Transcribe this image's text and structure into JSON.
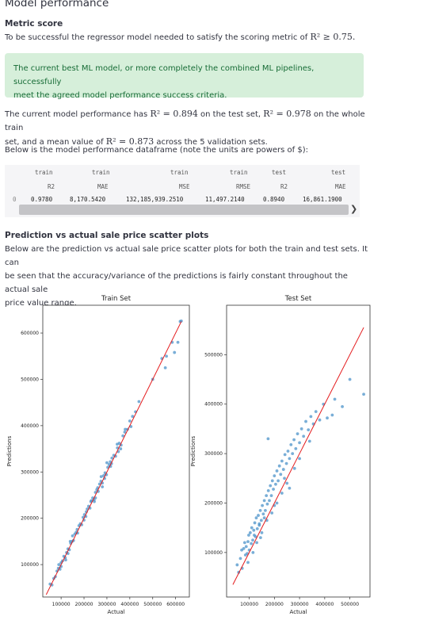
{
  "page": {
    "title": "Model performance",
    "metric_heading": "Metric score",
    "metric_text_pre": "To be successful the regressor model needed to satisfy the scoring metric of",
    "metric_math": "R² ≥ 0.75.",
    "success_line1": "The current best ML model, or more completely the combined ML pipelines, successfully",
    "success_line2": "meet the agreed model performance success criteria.",
    "perf_line1_a": "The current model performance has",
    "perf_line1_m1": "R² = 0.894",
    "perf_line1_b": "on the test set,",
    "perf_line1_m2": "R² = 0.978",
    "perf_line1_c": "on the whole train",
    "perf_line2_a": "set, and a mean value of",
    "perf_line2_m": "R² = 0.873",
    "perf_line2_b": "across the 5 validation sets.",
    "df_intro": "Below is the model performance dataframe (note the units are powers of $):",
    "scatter_heading": "Prediction vs actual sale price scatter plots",
    "scatter_line1": "Below are the prediction vs actual sale price scatter plots for both the train and test sets. It can",
    "scatter_line2": "be seen that the accuracy/variance of the predictions is fairly constant throughout the actual sale",
    "scatter_line3": "price value range."
  },
  "dataframe": {
    "columns_top": [
      "train",
      "train",
      "train",
      "train",
      "test",
      "test"
    ],
    "columns_bottom": [
      "R2",
      "MAE",
      "MSE",
      "RMSE",
      "R2",
      "MAE"
    ],
    "index": "0",
    "values": [
      "0.9780",
      "8,170.5420",
      "132,185,939.2510",
      "11,497.2140",
      "0.8940",
      "16,861.1900"
    ]
  },
  "colors": {
    "points": "#4c93c9",
    "fit_line": "#e41a1c",
    "success_bg": "#d6efda",
    "success_text": "#176c36"
  },
  "chart_data": [
    {
      "type": "scatter",
      "title": "Train Set",
      "xlabel": "Actual",
      "ylabel": "Predictions",
      "xticks": [
        100000,
        200000,
        300000,
        400000,
        500000,
        600000
      ],
      "xticklabels": [
        "100000",
        "200000",
        "300000",
        "400000",
        "500000",
        "600000"
      ],
      "yticks": [
        100000,
        200000,
        300000,
        400000,
        500000,
        600000
      ],
      "yticklabels": [
        "100000",
        "200000",
        "300000",
        "400000",
        "500000",
        "600000"
      ],
      "xlim": [
        20000,
        660000
      ],
      "ylim": [
        30000,
        660000
      ],
      "line": {
        "x": [
          35000,
          625000
        ],
        "y": [
          35000,
          625000
        ]
      },
      "points": [
        [
          52000,
          58000
        ],
        [
          60000,
          56000
        ],
        [
          68000,
          70000
        ],
        [
          75000,
          74000
        ],
        [
          82000,
          86000
        ],
        [
          88000,
          92000
        ],
        [
          95000,
          90000
        ],
        [
          100000,
          104000
        ],
        [
          106000,
          108000
        ],
        [
          112000,
          118000
        ],
        [
          118000,
          115000
        ],
        [
          124000,
          126000
        ],
        [
          130000,
          134000
        ],
        [
          136000,
          132000
        ],
        [
          142000,
          146000
        ],
        [
          148000,
          150000
        ],
        [
          154000,
          152000
        ],
        [
          160000,
          166000
        ],
        [
          166000,
          170000
        ],
        [
          172000,
          168000
        ],
        [
          178000,
          184000
        ],
        [
          184000,
          188000
        ],
        [
          190000,
          186000
        ],
        [
          196000,
          202000
        ],
        [
          202000,
          208000
        ],
        [
          208000,
          204000
        ],
        [
          214000,
          220000
        ],
        [
          220000,
          226000
        ],
        [
          226000,
          222000
        ],
        [
          232000,
          238000
        ],
        [
          238000,
          244000
        ],
        [
          244000,
          240000
        ],
        [
          250000,
          256000
        ],
        [
          256000,
          262000
        ],
        [
          262000,
          258000
        ],
        [
          268000,
          274000
        ],
        [
          274000,
          280000
        ],
        [
          280000,
          276000
        ],
        [
          286000,
          292000
        ],
        [
          292000,
          298000
        ],
        [
          298000,
          294000
        ],
        [
          304000,
          310000
        ],
        [
          310000,
          316000
        ],
        [
          316000,
          312000
        ],
        [
          322000,
          330000
        ],
        [
          330000,
          336000
        ],
        [
          338000,
          334000
        ],
        [
          346000,
          352000
        ],
        [
          354000,
          362000
        ],
        [
          362000,
          358000
        ],
        [
          370000,
          378000
        ],
        [
          378000,
          386000
        ],
        [
          390000,
          392000
        ],
        [
          400000,
          410000
        ],
        [
          412000,
          420000
        ],
        [
          425000,
          430000
        ],
        [
          440000,
          452000
        ],
        [
          120000,
          110000
        ],
        [
          140000,
          150000
        ],
        [
          170000,
          176000
        ],
        [
          200000,
          196000
        ],
        [
          230000,
          236000
        ],
        [
          260000,
          266000
        ],
        [
          290000,
          286000
        ],
        [
          320000,
          318000
        ],
        [
          350000,
          344000
        ],
        [
          380000,
          392000
        ],
        [
          300000,
          320000
        ],
        [
          280000,
          268000
        ],
        [
          250000,
          244000
        ],
        [
          210000,
          214000
        ],
        [
          150000,
          162000
        ],
        [
          130000,
          124000
        ],
        [
          100000,
          96000
        ],
        [
          90000,
          100000
        ],
        [
          245000,
          236000
        ],
        [
          275000,
          290000
        ],
        [
          315000,
          322000
        ],
        [
          345000,
          360000
        ],
        [
          360000,
          350000
        ],
        [
          405000,
          398000
        ],
        [
          500000,
          500000
        ],
        [
          555000,
          525000
        ],
        [
          585000,
          580000
        ],
        [
          595000,
          558000
        ],
        [
          610000,
          580000
        ],
        [
          620000,
          625000
        ],
        [
          625000,
          626000
        ],
        [
          560000,
          550000
        ],
        [
          540000,
          545000
        ]
      ]
    },
    {
      "type": "scatter",
      "title": "Test Set",
      "xlabel": "Actual",
      "ylabel": "Predictions",
      "xticks": [
        100000,
        200000,
        300000,
        400000,
        500000
      ],
      "xticklabels": [
        "100000",
        "200000",
        "300000",
        "400000",
        "500000"
      ],
      "yticks": [
        100000,
        200000,
        300000,
        400000,
        500000
      ],
      "yticklabels": [
        "100000",
        "200000",
        "300000",
        "400000",
        "500000"
      ],
      "xlim": [
        10000,
        580000
      ],
      "ylim": [
        10000,
        600000
      ],
      "line": {
        "x": [
          35000,
          555000
        ],
        "y": [
          35000,
          555000
        ]
      },
      "points": [
        [
          52000,
          75000
        ],
        [
          58000,
          60000
        ],
        [
          65000,
          88000
        ],
        [
          70000,
          105000
        ],
        [
          72000,
          68000
        ],
        [
          78000,
          108000
        ],
        [
          82000,
          120000
        ],
        [
          85000,
          95000
        ],
        [
          88000,
          112000
        ],
        [
          92000,
          98000
        ],
        [
          95000,
          122000
        ],
        [
          98000,
          135000
        ],
        [
          100000,
          105000
        ],
        [
          104000,
          140000
        ],
        [
          108000,
          118000
        ],
        [
          110000,
          150000
        ],
        [
          114000,
          125000
        ],
        [
          118000,
          145000
        ],
        [
          122000,
          160000
        ],
        [
          125000,
          132000
        ],
        [
          128000,
          170000
        ],
        [
          132000,
          148000
        ],
        [
          136000,
          175000
        ],
        [
          140000,
          158000
        ],
        [
          144000,
          185000
        ],
        [
          148000,
          165000
        ],
        [
          152000,
          195000
        ],
        [
          156000,
          178000
        ],
        [
          160000,
          205000
        ],
        [
          164000,
          185000
        ],
        [
          168000,
          215000
        ],
        [
          172000,
          198000
        ],
        [
          176000,
          225000
        ],
        [
          180000,
          205000
        ],
        [
          184000,
          235000
        ],
        [
          188000,
          215000
        ],
        [
          192000,
          245000
        ],
        [
          196000,
          228000
        ],
        [
          200000,
          255000
        ],
        [
          205000,
          238000
        ],
        [
          210000,
          265000
        ],
        [
          215000,
          245000
        ],
        [
          220000,
          275000
        ],
        [
          225000,
          258000
        ],
        [
          230000,
          285000
        ],
        [
          236000,
          268000
        ],
        [
          242000,
          298000
        ],
        [
          248000,
          280000
        ],
        [
          254000,
          305000
        ],
        [
          260000,
          290000
        ],
        [
          266000,
          318000
        ],
        [
          272000,
          300000
        ],
        [
          278000,
          328000
        ],
        [
          285000,
          310000
        ],
        [
          292000,
          340000
        ],
        [
          300000,
          322000
        ],
        [
          308000,
          350000
        ],
        [
          316000,
          335000
        ],
        [
          325000,
          365000
        ],
        [
          335000,
          348000
        ],
        [
          345000,
          375000
        ],
        [
          355000,
          360000
        ],
        [
          365000,
          385000
        ],
        [
          380000,
          368000
        ],
        [
          395000,
          400000
        ],
        [
          410000,
          372000
        ],
        [
          430000,
          378000
        ],
        [
          440000,
          410000
        ],
        [
          470000,
          395000
        ],
        [
          500000,
          450000
        ],
        [
          555000,
          420000
        ],
        [
          130000,
          120000
        ],
        [
          150000,
          140000
        ],
        [
          170000,
          165000
        ],
        [
          190000,
          180000
        ],
        [
          210000,
          200000
        ],
        [
          230000,
          220000
        ],
        [
          250000,
          240000
        ],
        [
          120000,
          135000
        ],
        [
          140000,
          155000
        ],
        [
          160000,
          170000
        ],
        [
          200000,
          195000
        ],
        [
          240000,
          250000
        ],
        [
          280000,
          270000
        ],
        [
          175000,
          330000
        ],
        [
          260000,
          230000
        ],
        [
          300000,
          290000
        ],
        [
          340000,
          325000
        ],
        [
          95000,
          80000
        ],
        [
          115000,
          100000
        ],
        [
          145000,
          130000
        ]
      ]
    }
  ]
}
